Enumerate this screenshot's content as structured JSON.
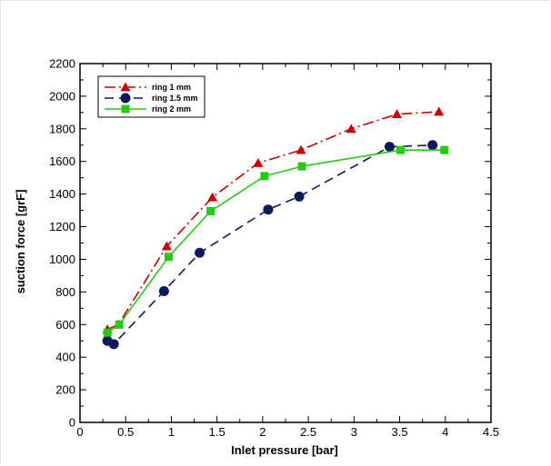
{
  "chart_data": {
    "type": "line",
    "title": "",
    "xlabel": "Inlet pressure [bar]",
    "ylabel": "suction force [grF]",
    "xlim": [
      0,
      4.5
    ],
    "ylim": [
      0,
      2200
    ],
    "xticks": [
      0,
      0.5,
      1,
      1.5,
      2,
      2.5,
      3,
      3.5,
      4,
      4.5
    ],
    "yticks": [
      0,
      200,
      400,
      600,
      800,
      1000,
      1200,
      1400,
      1600,
      1800,
      2000,
      2200
    ],
    "xtick_labels": [
      "0",
      "0.5",
      "1",
      "1.5",
      "2",
      "2.5",
      "3",
      "3.5",
      "4",
      "4.5"
    ],
    "ytick_labels": [
      "0",
      "200",
      "400",
      "600",
      "800",
      "1000",
      "1200",
      "1400",
      "1600",
      "1800",
      "2000",
      "2200"
    ],
    "legend_position": "top-left",
    "grid": false,
    "series": [
      {
        "name": "ring 1 mm",
        "color": "#cc0000",
        "line_style": "dash-dot",
        "marker": "triangle",
        "x": [
          0.3,
          0.42,
          0.95,
          1.45,
          1.95,
          2.42,
          2.97,
          3.47,
          3.93
        ],
        "y": [
          570,
          600,
          1080,
          1380,
          1590,
          1670,
          1800,
          1890,
          1905
        ]
      },
      {
        "name": "ring 1.5 mm",
        "color": "#0a1a5c",
        "line_style": "dash",
        "marker": "circle",
        "x": [
          0.3,
          0.37,
          0.92,
          1.31,
          2.06,
          2.4,
          3.39,
          3.86
        ],
        "y": [
          500,
          480,
          805,
          1040,
          1305,
          1385,
          1690,
          1700
        ]
      },
      {
        "name": "ring 2 mm",
        "color": "#22cc11",
        "line_style": "solid",
        "marker": "square",
        "x": [
          0.3,
          0.43,
          0.97,
          1.43,
          2.02,
          2.43,
          3.51,
          3.99
        ],
        "y": [
          550,
          600,
          1015,
          1295,
          1510,
          1570,
          1670,
          1670
        ]
      }
    ]
  }
}
